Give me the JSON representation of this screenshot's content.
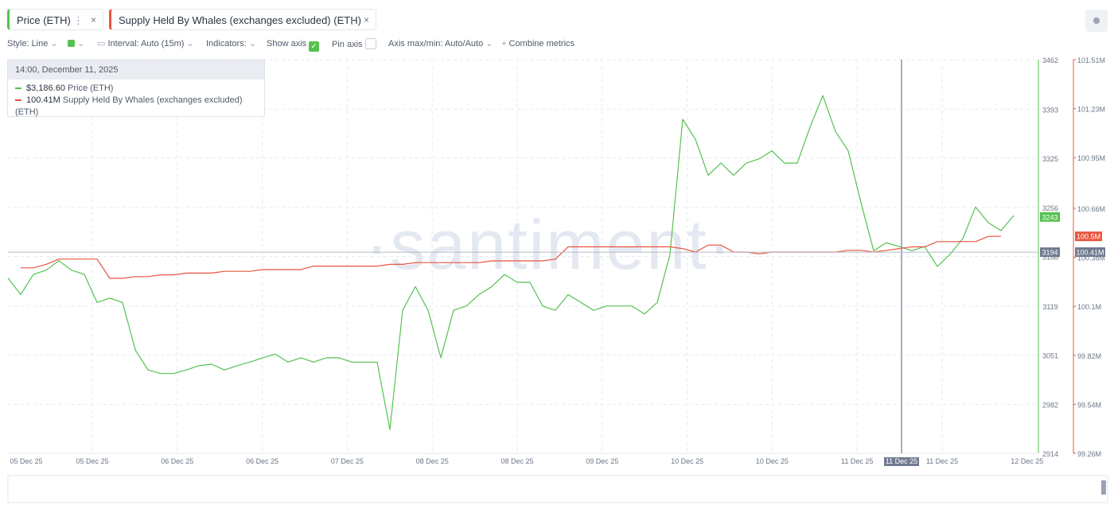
{
  "tabs": [
    "Price (ETH)",
    "Supply Held By Whales (exchanges excluded) (ETH)"
  ],
  "toolbar": {
    "style": "Style: Line",
    "interval": "Interval: Auto (15m)",
    "indicators": "Indicators:",
    "show_axis": "Show axis",
    "pin_axis": "Pin axis",
    "axis_minmax": "Axis max/min: Auto/Auto",
    "combine": "Combine metrics"
  },
  "watermark": "·santiment·",
  "tooltip": {
    "time": "14:00, December 11, 2025",
    "rows": [
      {
        "value": "$3,186.60",
        "name": "Price (ETH)"
      },
      {
        "value": "100.41M",
        "name": "Supply Held By Whales (exchanges excluded) (ETH)"
      }
    ]
  },
  "chart_data": {
    "type": "line",
    "x_labels": [
      "05 Dec 25",
      "05 Dec 25",
      "06 Dec 25",
      "06 Dec 25",
      "07 Dec 25",
      "08 Dec 25",
      "08 Dec 25",
      "09 Dec 25",
      "10 Dec 25",
      "10 Dec 25",
      "11 Dec 25",
      "11 Dec 25",
      "12 Dec 25"
    ],
    "series": [
      {
        "name": "Price (ETH)",
        "color": "#55c14f",
        "values": [
          3158,
          3135,
          3163,
          3169,
          3182,
          3169,
          3163,
          3124,
          3130,
          3124,
          3058,
          3030,
          3025,
          3025,
          3030,
          3036,
          3038,
          3030,
          3036,
          3041,
          3047,
          3052,
          3041,
          3047,
          3041,
          3047,
          3047,
          3041,
          3041,
          3041,
          2947,
          3113,
          3146,
          3113,
          3047,
          3113,
          3119,
          3135,
          3146,
          3163,
          3152,
          3152,
          3119,
          3113,
          3135,
          3124,
          3113,
          3119,
          3119,
          3119,
          3108,
          3124,
          3191,
          3379,
          3351,
          3301,
          3318,
          3301,
          3318,
          3324,
          3335,
          3318,
          3318,
          3368,
          3412,
          3362,
          3335,
          3263,
          3196,
          3207,
          3202,
          3196,
          3202,
          3174,
          3191,
          3213,
          3257,
          3235,
          3224,
          3245
        ]
      },
      {
        "name": "Supply Held By Whales (exchanges excluded) (ETH)",
        "color": "#e8553f",
        "axis": "y2",
        "values": [
          null,
          100320000,
          100320000,
          100340000,
          100370000,
          100370000,
          100370000,
          100370000,
          100260000,
          100260000,
          100270000,
          100270000,
          100280000,
          100280000,
          100290000,
          100290000,
          100290000,
          100300000,
          100300000,
          100300000,
          100310000,
          100310000,
          100310000,
          100310000,
          100330000,
          100330000,
          100330000,
          100330000,
          100330000,
          100330000,
          100340000,
          100340000,
          100350000,
          100350000,
          100350000,
          100350000,
          100350000,
          100350000,
          100360000,
          100360000,
          100360000,
          100360000,
          100360000,
          100370000,
          100440000,
          100440000,
          100440000,
          100440000,
          100440000,
          100440000,
          100440000,
          100440000,
          100440000,
          100430000,
          100410000,
          100450000,
          100450000,
          100410000,
          100410000,
          100400000,
          100410000,
          100410000,
          100410000,
          100410000,
          100410000,
          100410000,
          100420000,
          100420000,
          100410000,
          100420000,
          100430000,
          100440000,
          100440000,
          100470000,
          100470000,
          100470000,
          100470000,
          100500000,
          100500000,
          null
        ]
      }
    ],
    "ylim": [
      2914,
      3462
    ],
    "yticks": [
      2914,
      2982,
      3051,
      3119,
      3188,
      3256,
      3325,
      3393,
      3462
    ],
    "y2lim": [
      99260000,
      101510000
    ],
    "y2ticks": [
      {
        "value": 99260000,
        "label": "99.26M"
      },
      {
        "value": 99540000,
        "label": "99.54M"
      },
      {
        "value": 99820000,
        "label": "99.82M"
      },
      {
        "value": 100100000,
        "label": "100.1M"
      },
      {
        "value": 100380000,
        "label": "100.38M"
      },
      {
        "value": 100660000,
        "label": "100.66M"
      },
      {
        "value": 100950000,
        "label": "100.95M"
      },
      {
        "value": 101230000,
        "label": "101.23M"
      },
      {
        "value": 101510000,
        "label": "101.51M"
      }
    ],
    "grid": true,
    "last_values": {
      "price": 3243,
      "supply": {
        "value": 100500000,
        "label": "100.5M"
      }
    },
    "crosshair": {
      "x_label": "11 Dec 25",
      "price": 3194,
      "supply": {
        "value": 100410000,
        "label": "100.41M"
      }
    }
  }
}
